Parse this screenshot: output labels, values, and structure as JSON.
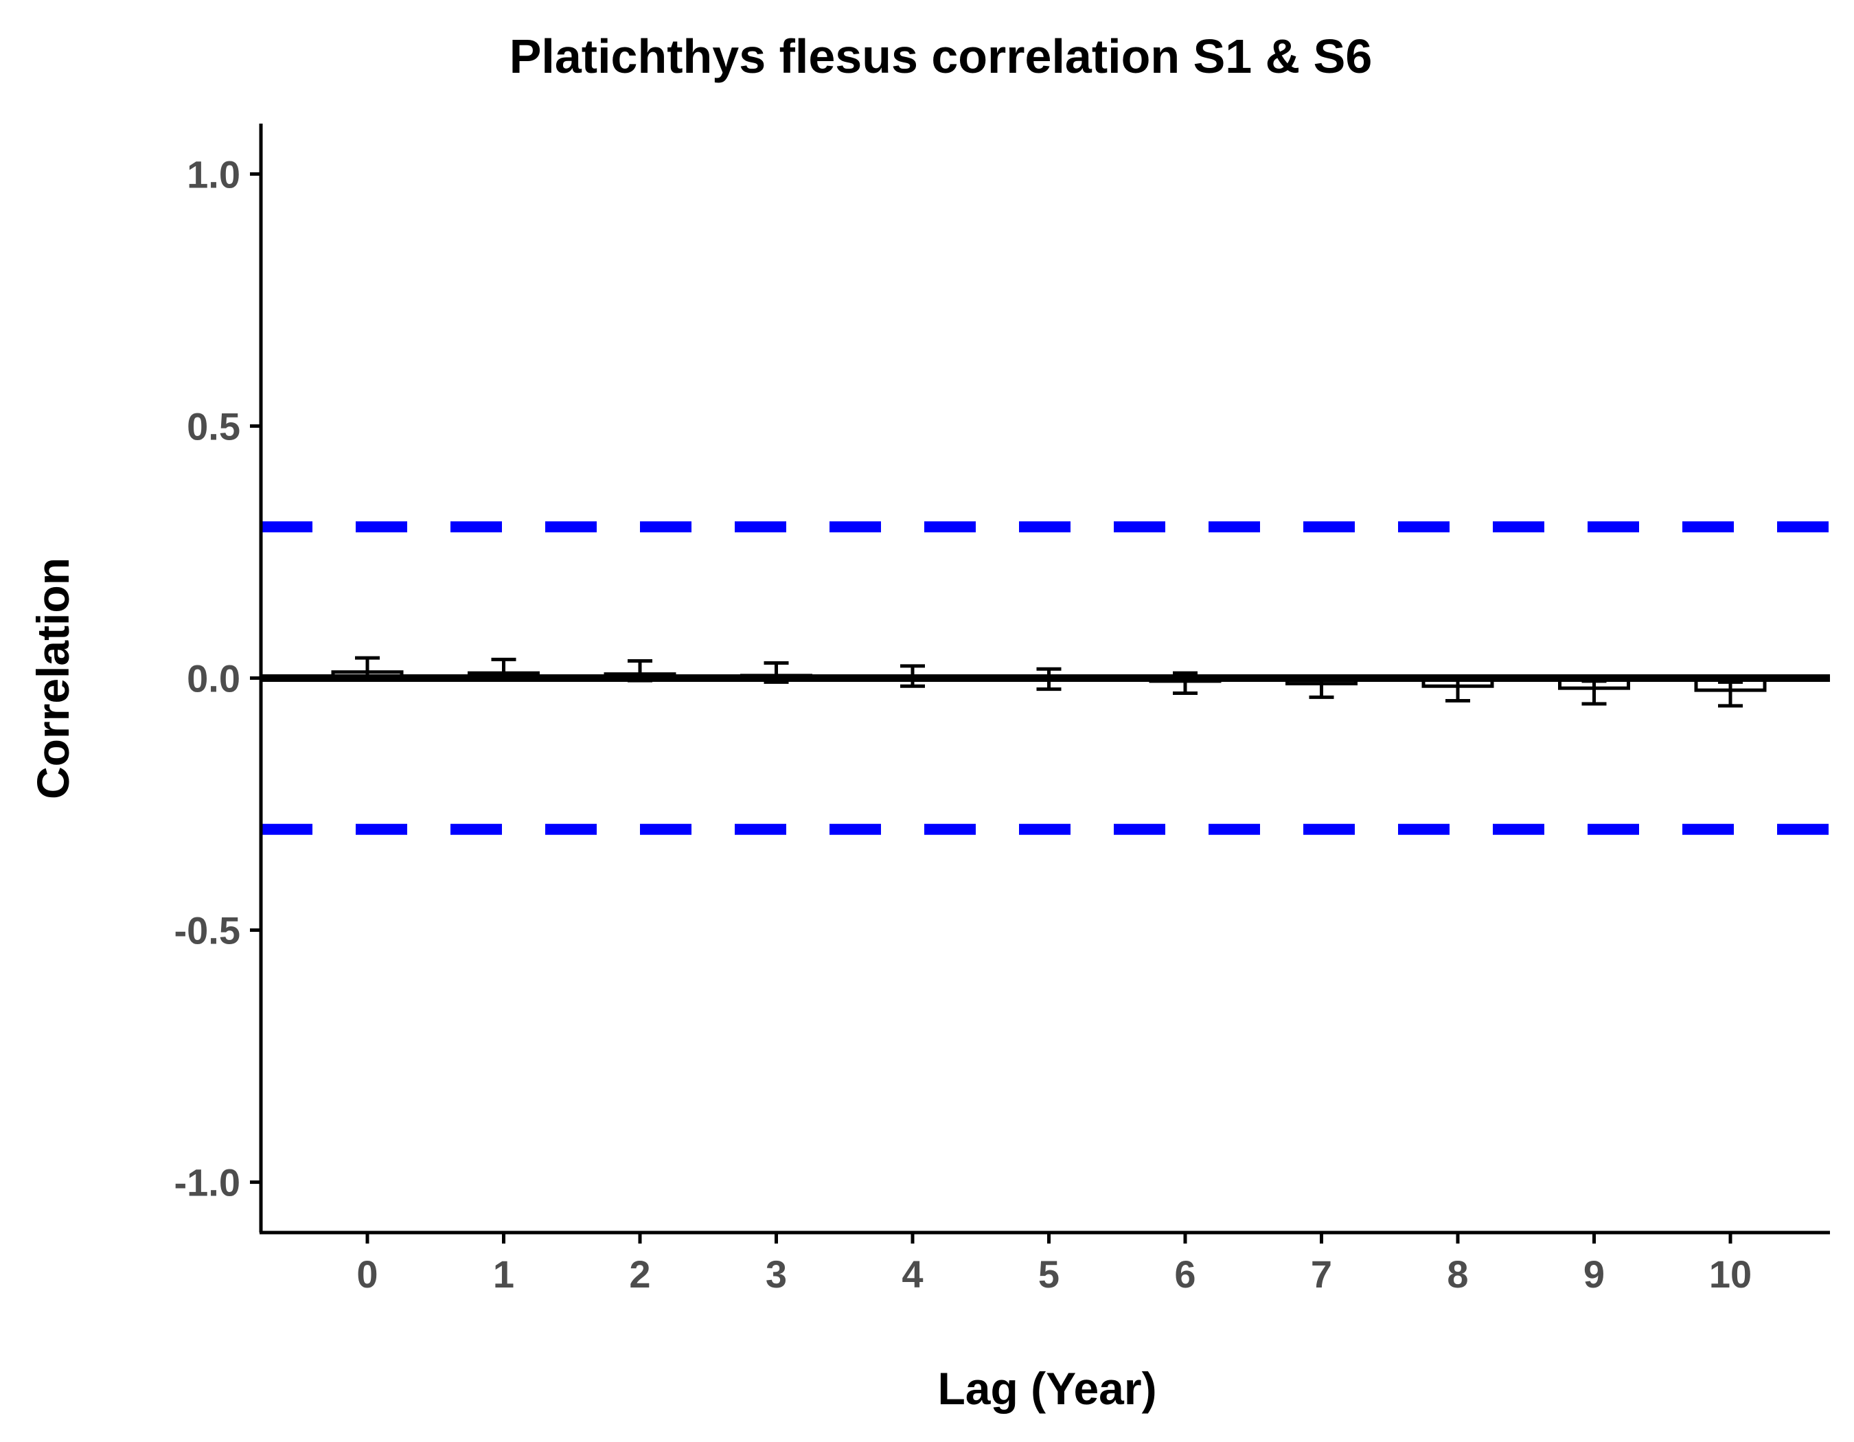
{
  "chart_data": {
    "type": "bar",
    "title": "Platichthys flesus correlation S1 & S6",
    "xlabel": "Lag (Year)",
    "ylabel": "Correlation",
    "categories": [
      "0",
      "1",
      "2",
      "3",
      "4",
      "5",
      "6",
      "7",
      "8",
      "9",
      "10"
    ],
    "values": [
      0.012,
      0.01,
      0.008,
      0.005,
      0.001,
      -0.002,
      -0.006,
      -0.011,
      -0.016,
      -0.02,
      -0.024
    ],
    "error_upper": [
      0.04,
      0.037,
      0.034,
      0.03,
      0.024,
      0.018,
      0.01,
      0.004,
      -0.002,
      -0.006,
      -0.008
    ],
    "error_lower": [
      -0.004,
      -0.004,
      -0.005,
      -0.008,
      -0.016,
      -0.022,
      -0.03,
      -0.038,
      -0.045,
      -0.051,
      -0.055
    ],
    "confidence_bounds": [
      0.3,
      -0.3
    ],
    "confidence_color": "#0000ff",
    "bar_fill": "#ffffff",
    "bar_stroke": "#000000",
    "ylim": [
      -1.1,
      1.1
    ],
    "yticks": [
      1.0,
      0.5,
      0.0,
      -0.5,
      -1.0
    ],
    "ytick_labels": [
      "1.0",
      "0.5",
      "0.0",
      "-0.5",
      "-1.0"
    ],
    "grid": false,
    "legend": "none"
  }
}
